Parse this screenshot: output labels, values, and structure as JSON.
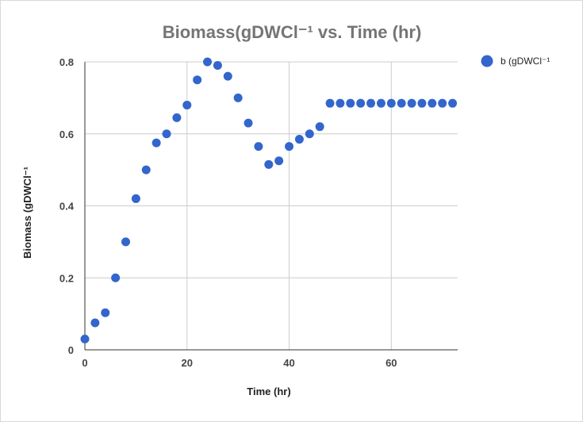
{
  "chart_data": {
    "type": "scatter",
    "title": "Biomass(gDWCl⁻¹ vs. Time (hr)",
    "xlabel": "Time (hr)",
    "ylabel": "Biomass (gDWCl⁻¹",
    "xlim": [
      0,
      73
    ],
    "ylim": [
      0,
      0.8
    ],
    "x_ticks": [
      "0",
      "20",
      "40",
      "60"
    ],
    "x_tick_values": [
      0,
      20,
      40,
      60
    ],
    "y_ticks": [
      "0",
      "0.2",
      "0.4",
      "0.6",
      "0.8"
    ],
    "y_tick_values": [
      0,
      0.2,
      0.4,
      0.6,
      0.8
    ],
    "grid": true,
    "legend_position": "top-right",
    "series": [
      {
        "name": "b (gDWCl⁻¹",
        "color": "#3366cc",
        "x": [
          0,
          2,
          4,
          6,
          8,
          10,
          12,
          14,
          16,
          18,
          20,
          22,
          24,
          26,
          28,
          30,
          32,
          34,
          36,
          38,
          40,
          42,
          44,
          46,
          48,
          50,
          52,
          54,
          56,
          58,
          60,
          62,
          64,
          66,
          68,
          70,
          72
        ],
        "y": [
          0.03,
          0.075,
          0.103,
          0.2,
          0.3,
          0.42,
          0.5,
          0.575,
          0.6,
          0.645,
          0.68,
          0.75,
          0.8,
          0.79,
          0.76,
          0.7,
          0.63,
          0.565,
          0.515,
          0.525,
          0.565,
          0.585,
          0.6,
          0.62,
          0.685,
          0.685,
          0.685,
          0.685,
          0.685,
          0.685,
          0.685,
          0.685,
          0.685,
          0.685,
          0.685,
          0.685,
          0.685
        ]
      }
    ]
  }
}
